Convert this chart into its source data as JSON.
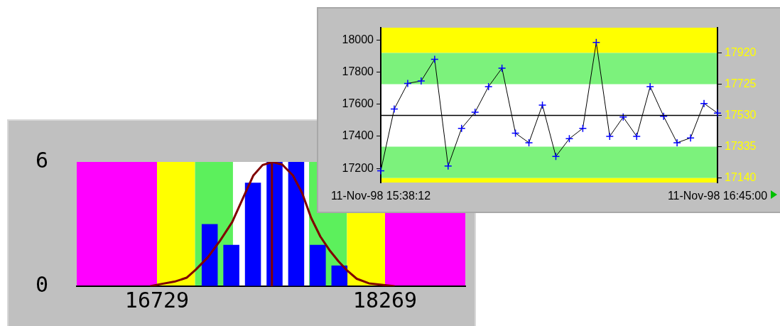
{
  "chart_data": [
    {
      "type": "histogram",
      "xlim": [
        16187,
        18811
      ],
      "xticks": [
        16729,
        18269
      ],
      "ylim": [
        0,
        6
      ],
      "yticks": [
        0,
        6
      ],
      "grid": false,
      "legend": false,
      "bands": [
        {
          "axis": "x",
          "from": 16187,
          "to": 16729,
          "color": "#ff00ff"
        },
        {
          "axis": "x",
          "from": 16729,
          "to": 16986,
          "color": "#ffff00"
        },
        {
          "axis": "x",
          "from": 16986,
          "to": 17242,
          "color": "#5cf05c"
        },
        {
          "axis": "x",
          "from": 17756,
          "to": 18012,
          "color": "#5cf05c"
        },
        {
          "axis": "x",
          "from": 18012,
          "to": 18269,
          "color": "#ffff00"
        },
        {
          "axis": "x",
          "from": 18269,
          "to": 18811,
          "color": "#ff00ff"
        }
      ],
      "ref_lines": [
        {
          "axis": "x",
          "value": 17505,
          "color": "#800000"
        }
      ],
      "series": [
        {
          "type": "histogram",
          "bins": [
            17012,
            17158,
            17304,
            17450,
            17596,
            17742,
            17888,
            18034
          ],
          "values": [
            3,
            2,
            5,
            6,
            6,
            2,
            1
          ],
          "color": "#0000ff"
        },
        {
          "type": "line",
          "x": [
            16683,
            16744,
            16847,
            16929,
            16991,
            17073,
            17155,
            17237,
            17319,
            17380,
            17442,
            17509,
            17575,
            17647,
            17709,
            17770,
            17832,
            17893,
            17955,
            18016,
            18078,
            18160,
            18334
          ],
          "values": [
            0,
            0.09,
            0.22,
            0.41,
            0.8,
            1.4,
            2.2,
            3.1,
            4.4,
            5.35,
            5.85,
            6,
            5.87,
            5.35,
            4.5,
            3.3,
            2.4,
            1.75,
            1.2,
            0.74,
            0.36,
            0.14,
            0
          ],
          "color": "#800000"
        }
      ]
    },
    {
      "type": "line",
      "categories": [
        "11-Nov-98 15:38:12",
        null,
        null,
        null,
        null,
        null,
        null,
        null,
        null,
        null,
        null,
        null,
        null,
        null,
        null,
        null,
        null,
        null,
        null,
        null,
        null,
        null,
        null,
        null,
        null,
        "11-Nov-98 16:45:00"
      ],
      "ylim": [
        17112,
        18077
      ],
      "yticks": [
        17200,
        17400,
        17600,
        17800,
        18000
      ],
      "y2lim": [
        17112,
        18077
      ],
      "y2ticks": [
        17140,
        17335,
        17530,
        17725,
        17920
      ],
      "grid": false,
      "legend": false,
      "marker": "cross",
      "bands": [
        {
          "axis": "y",
          "from": 17920,
          "to": 18077,
          "color": "#ffff00"
        },
        {
          "axis": "y",
          "from": 17725,
          "to": 17920,
          "color": "#7cf27c"
        },
        {
          "axis": "y",
          "from": 17140,
          "to": 17335,
          "color": "#7cf27c"
        },
        {
          "axis": "y",
          "from": 17112,
          "to": 17140,
          "color": "#ffff00"
        }
      ],
      "ref_lines": [
        {
          "axis": "y",
          "value": 17530,
          "color": "#000000"
        }
      ],
      "series": [
        {
          "values": [
            17185,
            17570,
            17730,
            17745,
            17880,
            17215,
            17450,
            17550,
            17710,
            17825,
            17420,
            17360,
            17595,
            17275,
            17385,
            17450,
            17985,
            17400,
            17520,
            17400,
            17710,
            17525,
            17360,
            17390,
            17605,
            17545
          ],
          "color": "#000000",
          "colors": [
            "#0000ff",
            "#0000ff",
            "#0000ff",
            "#0000ff",
            "#0000ff",
            "#0000ff",
            "#0000ff",
            "#0000ff",
            "#0000ff",
            "#0000ff",
            "#0000ff",
            "#0000ff",
            "#0000ff",
            "#0000ff",
            "#0000ff",
            "#0000ff",
            "#0000ff",
            "#0000ff",
            "#0000ff",
            "#0000ff",
            "#0000ff",
            "#0000ff",
            "#0000ff",
            "#0000ff",
            "#0000ff",
            "#0000ff"
          ]
        }
      ]
    }
  ]
}
